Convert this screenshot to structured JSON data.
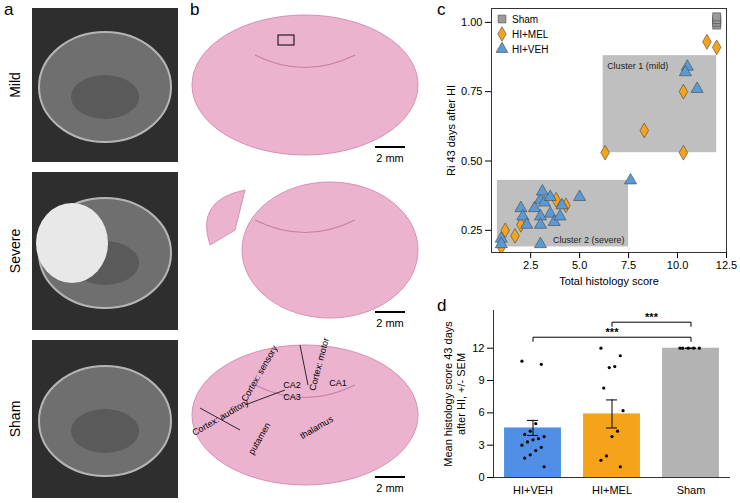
{
  "panels": {
    "a": {
      "label": "a",
      "rows": [
        "Mild",
        "Severe",
        "Sham"
      ]
    },
    "b": {
      "label": "b",
      "scale_bar": "2 mm",
      "regions": [
        "Cortex: motor",
        "Cortex: sensory",
        "CA1",
        "CA2",
        "CA3",
        "Cortex: auditory",
        "putamen",
        "thalamus"
      ]
    }
  },
  "chart_data": [
    {
      "panel": "c",
      "type": "scatter",
      "xlabel": "Total histology score",
      "ylabel": "Ri 43 days after HI",
      "xlim": [
        0.5,
        12.5
      ],
      "ylim": [
        0.17,
        1.05
      ],
      "xticks": [
        2.5,
        {
          "value": 5,
          "label": "5.0"
        },
        7.5,
        {
          "value": 10,
          "label": "10.0"
        },
        12.5
      ],
      "yticks": [
        0.25,
        {
          "value": 0.5,
          "label": "0.50"
        },
        0.75,
        {
          "value": 1,
          "label": "1.00"
        }
      ],
      "grid": false,
      "legend": "top-left",
      "series": [
        {
          "name": "Sham",
          "color": "#9a9a9a",
          "marker": "square",
          "x": [
            12,
            12,
            12,
            12
          ],
          "y": [
            0.99,
            1.0,
            1.01,
            1.02
          ]
        },
        {
          "name": "HI+MEL",
          "color": "#f5a31a",
          "marker": "diamond",
          "x": [
            11.5,
            12.0,
            10.3,
            10.3,
            8.3,
            6.3,
            1.0,
            1.2,
            1.7,
            2.0,
            3.8,
            4.3
          ],
          "y": [
            0.93,
            0.91,
            0.75,
            0.53,
            0.61,
            0.53,
            0.19,
            0.25,
            0.23,
            0.27,
            0.36,
            0.34
          ]
        },
        {
          "name": "HI+VEH",
          "color": "#5b9bd5",
          "marker": "triangle",
          "x": [
            10.5,
            10.4,
            11.0,
            7.6,
            1.0,
            1.0,
            2.0,
            2.1,
            2.3,
            2.7,
            3.0,
            3.1,
            3.2,
            3.5,
            3.5,
            3.0,
            3.0,
            3.0,
            3.7,
            4.0,
            4.1,
            5.0
          ],
          "y": [
            0.84,
            0.82,
            0.76,
            0.43,
            0.22,
            0.2,
            0.33,
            0.3,
            0.27,
            0.33,
            0.36,
            0.39,
            0.35,
            0.37,
            0.31,
            0.3,
            0.27,
            0.2,
            0.28,
            0.3,
            0.34,
            0.37
          ]
        }
      ],
      "annotations": [
        {
          "text": "Cluster 1 (mild)",
          "x": [
            6.2,
            12.0
          ],
          "y": [
            0.53,
            0.88
          ]
        },
        {
          "text": "Cluster 2 (severe)",
          "x": [
            0.8,
            7.5
          ],
          "y": [
            0.19,
            0.43
          ]
        }
      ]
    },
    {
      "panel": "d",
      "type": "bar",
      "ylabel": "Mean histology score 43 days after HI, +/- SEM",
      "categories": [
        "HI+VEH",
        "HI+MEL",
        "Sham"
      ],
      "values": [
        4.6,
        5.9,
        12
      ],
      "errors": [
        0.7,
        1.3,
        0
      ],
      "colors": [
        "#4f8fe6",
        "#f5a31a",
        "#b3b3b3"
      ],
      "ylim": [
        0,
        15.5
      ],
      "yticks": [
        0,
        3,
        6,
        9,
        12
      ],
      "grid": false,
      "points": [
        [
          10.8,
          10.5,
          5.0,
          4.3,
          4.0,
          3.8,
          3.6,
          3.5,
          3.3,
          3.0,
          2.8,
          2.5,
          2.1,
          1.8,
          1.0
        ],
        [
          12.0,
          11.3,
          10.3,
          10.2,
          8.3,
          6.2,
          4.3,
          3.8,
          2.0,
          1.6,
          1.0
        ],
        [
          12,
          12,
          12,
          12,
          12
        ]
      ],
      "annotations": [
        {
          "text": "***",
          "pair": [
            "HI+VEH",
            "Sham"
          ]
        },
        {
          "text": "***",
          "pair": [
            "HI+MEL",
            "Sham"
          ]
        }
      ]
    }
  ]
}
